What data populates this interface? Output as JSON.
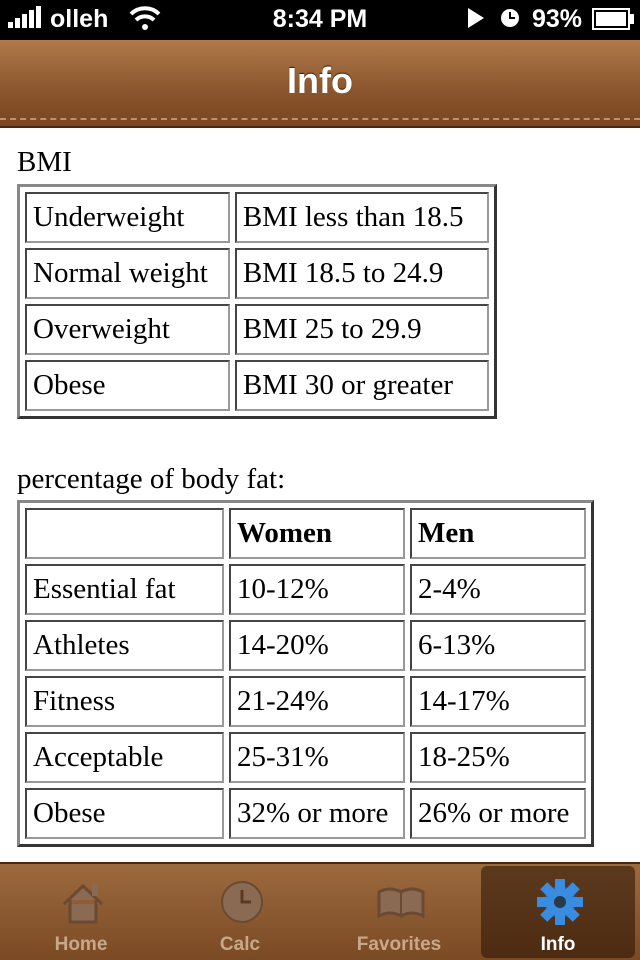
{
  "status_bar": {
    "carrier": "olleh",
    "time": "8:34 PM",
    "battery": "93%"
  },
  "nav_bar": {
    "title": "Info"
  },
  "bmi": {
    "heading": "BMI",
    "rows": [
      [
        "Underweight",
        "BMI less than 18.5"
      ],
      [
        "Normal weight",
        "BMI 18.5 to 24.9"
      ],
      [
        "Overweight",
        "BMI 25 to 29.9"
      ],
      [
        "Obese",
        "BMI 30 or greater"
      ]
    ]
  },
  "body_fat": {
    "heading": "percentage of body fat:",
    "columns": [
      "Women",
      "Men"
    ],
    "rows": [
      [
        "Essential fat",
        "10-12%",
        "2-4%"
      ],
      [
        "Athletes",
        "14-20%",
        "6-13%"
      ],
      [
        "Fitness",
        "21-24%",
        "14-17%"
      ],
      [
        "Acceptable",
        "25-31%",
        "18-25%"
      ],
      [
        "Obese",
        "32% or more",
        "26% or more"
      ]
    ]
  },
  "tab_bar": {
    "items": [
      "Home",
      "Calc",
      "Favorites",
      "Info"
    ],
    "selected": 3
  }
}
